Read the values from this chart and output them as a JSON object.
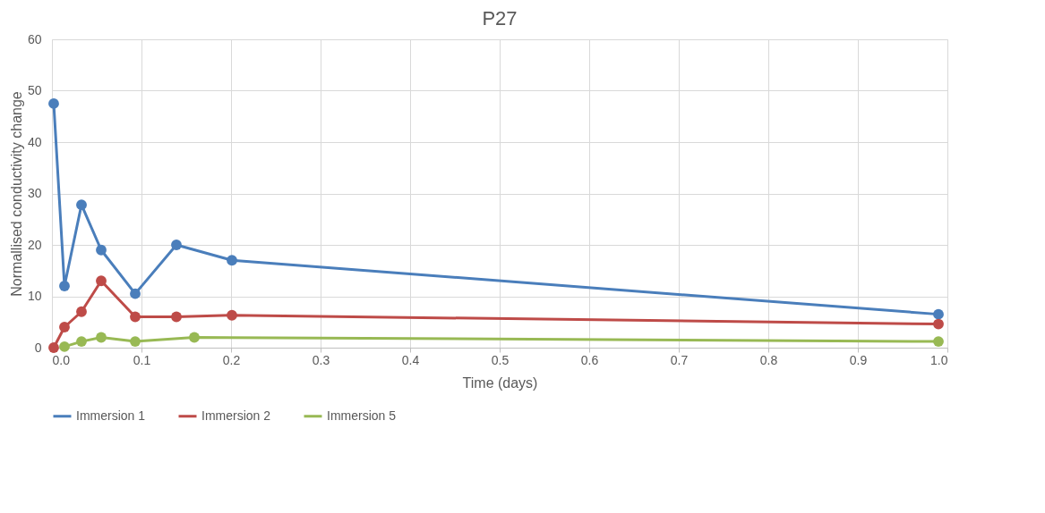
{
  "chart_data": {
    "type": "line",
    "title": "P27",
    "xlabel": "Time (days)",
    "ylabel": "Normallised conductivity change",
    "xlim": [
      0,
      1
    ],
    "xticks": [
      {
        "value": 0,
        "label": "0.0"
      },
      0.1,
      0.2,
      0.3,
      0.4,
      0.5,
      0.6,
      0.7,
      0.8,
      0.9,
      {
        "value": 1,
        "label": "1.0"
      }
    ],
    "ylim": [
      0,
      60
    ],
    "yticks": [
      0,
      10,
      20,
      30,
      40,
      50,
      60
    ],
    "grid": true,
    "legend": "bottom",
    "marker": "circle",
    "line_style": "solid",
    "series": [
      {
        "name": "Immersion 1",
        "color": "#4a7ebb",
        "x": [
          0.002,
          0.014,
          0.033,
          0.055,
          0.093,
          0.139,
          0.201,
          0.99
        ],
        "values": [
          47.5,
          12,
          27.8,
          19,
          10.5,
          20,
          17,
          6.5
        ]
      },
      {
        "name": "Immersion 2",
        "color": "#be4b48",
        "x": [
          0.002,
          0.014,
          0.033,
          0.055,
          0.093,
          0.139,
          0.201,
          0.99
        ],
        "values": [
          0,
          4,
          7,
          13,
          6,
          6,
          6.3,
          4.6
        ]
      },
      {
        "name": "Immersion 5",
        "color": "#98b954",
        "x": [
          0.014,
          0.033,
          0.055,
          0.093,
          0.159,
          0.99
        ],
        "values": [
          0.2,
          1.2,
          2,
          1.2,
          2,
          1.2
        ]
      }
    ]
  }
}
